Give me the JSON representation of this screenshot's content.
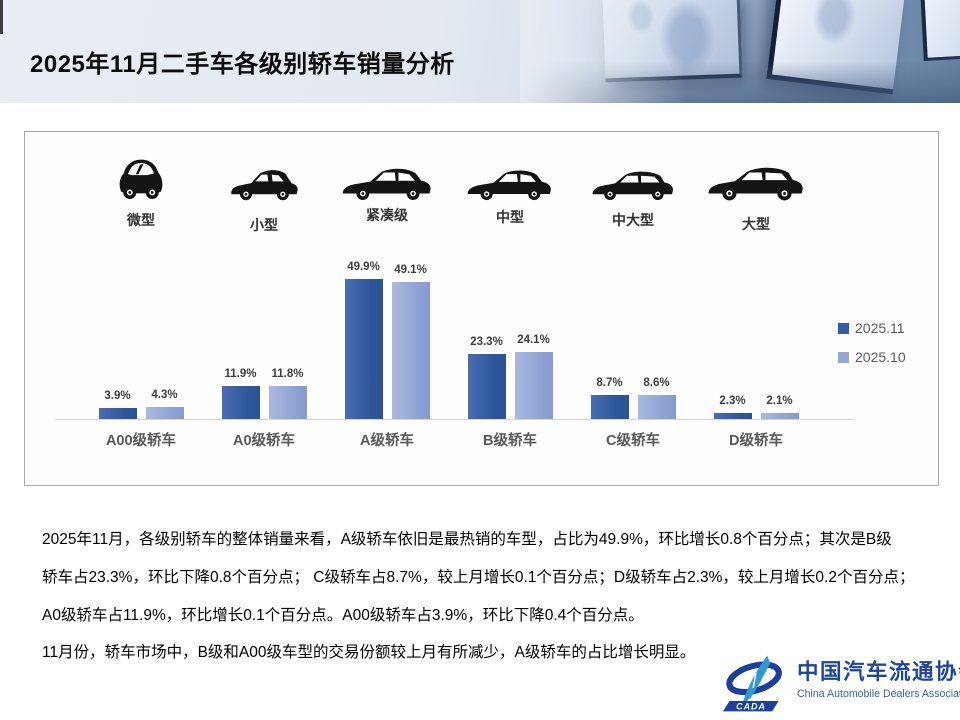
{
  "header": {
    "title": "2025年11月二手车各级别轿车销量分析"
  },
  "chart_data": {
    "type": "bar",
    "title": "",
    "categories": [
      "A00级轿车",
      "A0级轿车",
      "A级轿车",
      "B级轿车",
      "C级轿车",
      "D级轿车"
    ],
    "car_types": [
      "微型",
      "小型",
      "紧凑级",
      "中型",
      "中大型",
      "大型"
    ],
    "series": [
      {
        "name": "2025.11",
        "color": "#2f5da8",
        "values": [
          3.9,
          11.9,
          49.9,
          23.3,
          8.7,
          2.3
        ]
      },
      {
        "name": "2025.10",
        "color": "#93a6d6",
        "values": [
          4.3,
          11.8,
          49.1,
          24.1,
          8.6,
          2.1
        ]
      }
    ],
    "value_suffix": "%",
    "ylim": [
      0,
      55
    ],
    "grid": false,
    "legend_position": "right"
  },
  "analysis": {
    "lines": [
      "2025年11月，各级别轿车的整体销量来看，A级轿车依旧是最热销的车型，占比为49.9%，环比增长0.8个百分点；其次是B级",
      "轿车占23.3%，环比下降0.8个百分点； C级轿车占8.7%，较上月增长0.1个百分点；D级轿车占2.3%，较上月增长0.2个百分点；",
      "A0级轿车占11.9%，环比增长0.1个百分点。A00级轿车占3.9%，环比下降0.4个百分点。",
      "11月份，轿车市场中，B级和A00级车型的交易份额较上月有所减少，A级轿车的占比增长明显。"
    ]
  },
  "logo": {
    "cn": "中国汽车流通协会",
    "en": "China Automobile Dealers Association",
    "emblem_text": "CADA"
  }
}
